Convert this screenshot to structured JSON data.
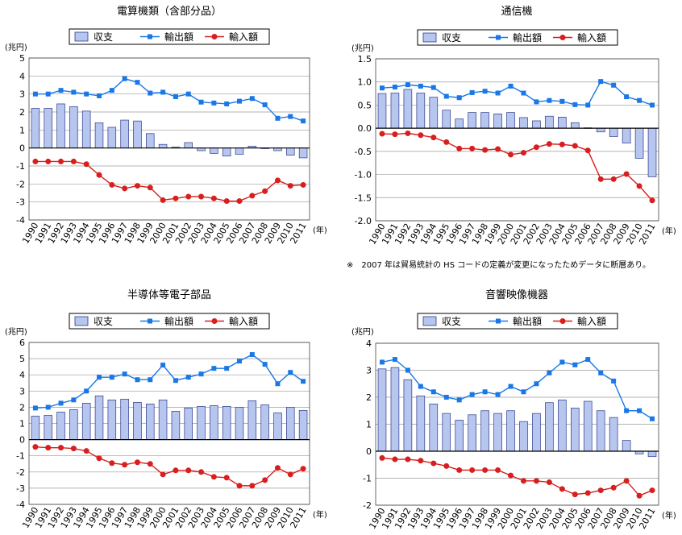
{
  "years": [
    "1990",
    "1991",
    "1992",
    "1993",
    "1994",
    "1995",
    "1996",
    "1997",
    "1998",
    "1999",
    "2000",
    "2001",
    "2002",
    "2003",
    "2004",
    "2005",
    "2006",
    "2007",
    "2008",
    "2009",
    "2010",
    "2011"
  ],
  "unit_y": "(兆円)",
  "unit_x": "(年)",
  "legend": {
    "balance": "収支",
    "exports": "輸出額",
    "imports": "輸入額"
  },
  "colors": {
    "balance_fill": "#b7c6ef",
    "balance_stroke": "#2c3a8a",
    "exports": "#1a78e6",
    "imports": "#d81e1e"
  },
  "note": "※　2007 年は貿易統計の HS コードの定義が変更になったためデータに断層あり。",
  "chart_data": [
    {
      "type": "bar",
      "title": "電算機類（含部分品）",
      "ylim": [
        -4,
        5
      ],
      "yticks": [
        "-4",
        "-3",
        "-2",
        "-1",
        "0",
        "1",
        "2",
        "3",
        "4",
        "5"
      ],
      "series": [
        {
          "name": "収支",
          "type": "bar",
          "values": [
            2.2,
            2.2,
            2.45,
            2.3,
            2.05,
            1.4,
            1.15,
            1.55,
            1.5,
            0.8,
            0.2,
            0.05,
            0.3,
            -0.15,
            -0.3,
            -0.45,
            -0.35,
            0.1,
            0.0,
            -0.15,
            -0.4,
            -0.55
          ]
        },
        {
          "name": "輸出額",
          "type": "line",
          "values": [
            3.0,
            3.0,
            3.2,
            3.1,
            3.0,
            2.9,
            3.2,
            3.85,
            3.65,
            3.05,
            3.1,
            2.85,
            3.0,
            2.55,
            2.5,
            2.45,
            2.6,
            2.75,
            2.4,
            1.65,
            1.75,
            1.5
          ]
        },
        {
          "name": "輸入額",
          "type": "line",
          "values": [
            -0.75,
            -0.75,
            -0.75,
            -0.75,
            -0.9,
            -1.5,
            -2.05,
            -2.25,
            -2.1,
            -2.2,
            -2.9,
            -2.8,
            -2.7,
            -2.7,
            -2.8,
            -2.95,
            -2.95,
            -2.65,
            -2.4,
            -1.8,
            -2.1,
            -2.05
          ]
        }
      ]
    },
    {
      "type": "bar",
      "title": "通信機",
      "ylim": [
        -2,
        1.5
      ],
      "yticks": [
        "-2.0",
        "-1.5",
        "-1.0",
        "-0.5",
        "0.0",
        "0.5",
        "1.0",
        "1.5"
      ],
      "series": [
        {
          "name": "収支",
          "type": "bar",
          "values": [
            0.75,
            0.76,
            0.84,
            0.76,
            0.67,
            0.39,
            0.2,
            0.34,
            0.34,
            0.31,
            0.34,
            0.23,
            0.16,
            0.26,
            0.24,
            0.12,
            0.01,
            -0.08,
            -0.18,
            -0.32,
            -0.65,
            -1.05
          ]
        },
        {
          "name": "輸出額",
          "type": "line",
          "values": [
            0.87,
            0.89,
            0.94,
            0.91,
            0.88,
            0.69,
            0.66,
            0.77,
            0.8,
            0.76,
            0.91,
            0.76,
            0.57,
            0.6,
            0.58,
            0.51,
            0.5,
            1.01,
            0.93,
            0.68,
            0.6,
            0.5
          ]
        },
        {
          "name": "輸入額",
          "type": "line",
          "values": [
            -0.12,
            -0.13,
            -0.11,
            -0.15,
            -0.2,
            -0.3,
            -0.44,
            -0.44,
            -0.47,
            -0.45,
            -0.57,
            -0.53,
            -0.41,
            -0.34,
            -0.35,
            -0.38,
            -0.48,
            -1.1,
            -1.1,
            -0.99,
            -1.25,
            -1.56
          ]
        }
      ]
    },
    {
      "type": "bar",
      "title": "半導体等電子部品",
      "ylim": [
        -4,
        6
      ],
      "yticks": [
        "-4",
        "-3",
        "-2",
        "-1",
        "0",
        "1",
        "2",
        "3",
        "4",
        "5",
        "6"
      ],
      "series": [
        {
          "name": "収支",
          "type": "bar",
          "values": [
            1.45,
            1.5,
            1.7,
            1.85,
            2.25,
            2.7,
            2.45,
            2.5,
            2.3,
            2.2,
            2.45,
            1.75,
            1.95,
            2.05,
            2.1,
            2.05,
            2.0,
            2.4,
            2.15,
            1.65,
            2.0,
            1.8
          ]
        },
        {
          "name": "輸出額",
          "type": "line",
          "values": [
            1.95,
            2.0,
            2.25,
            2.45,
            3.0,
            3.85,
            3.85,
            4.05,
            3.7,
            3.7,
            4.6,
            3.65,
            3.85,
            4.05,
            4.4,
            4.4,
            4.85,
            5.25,
            4.65,
            3.45,
            4.15,
            3.6
          ]
        },
        {
          "name": "輸入額",
          "type": "line",
          "values": [
            -0.45,
            -0.5,
            -0.5,
            -0.55,
            -0.7,
            -1.15,
            -1.45,
            -1.55,
            -1.4,
            -1.5,
            -2.15,
            -1.9,
            -1.9,
            -2.0,
            -2.3,
            -2.35,
            -2.85,
            -2.85,
            -2.5,
            -1.75,
            -2.15,
            -1.8
          ]
        }
      ]
    },
    {
      "type": "bar",
      "title": "音響映像機器",
      "ylim": [
        -2,
        4
      ],
      "yticks": [
        "-2",
        "-1",
        "0",
        "1",
        "2",
        "3",
        "4"
      ],
      "series": [
        {
          "name": "収支",
          "type": "bar",
          "values": [
            3.05,
            3.1,
            2.65,
            2.05,
            1.75,
            1.4,
            1.15,
            1.35,
            1.5,
            1.4,
            1.5,
            1.1,
            1.4,
            1.8,
            1.9,
            1.6,
            1.85,
            1.5,
            1.25,
            0.4,
            -0.1,
            -0.2
          ]
        },
        {
          "name": "輸出額",
          "type": "line",
          "values": [
            3.3,
            3.4,
            3.0,
            2.4,
            2.2,
            2.0,
            1.9,
            2.1,
            2.2,
            2.1,
            2.4,
            2.2,
            2.5,
            2.9,
            3.3,
            3.2,
            3.4,
            2.9,
            2.6,
            1.5,
            1.5,
            1.2
          ]
        },
        {
          "name": "輸入額",
          "type": "line",
          "values": [
            -0.25,
            -0.3,
            -0.3,
            -0.35,
            -0.45,
            -0.55,
            -0.7,
            -0.7,
            -0.7,
            -0.7,
            -0.9,
            -1.1,
            -1.1,
            -1.15,
            -1.4,
            -1.6,
            -1.55,
            -1.45,
            -1.35,
            -1.1,
            -1.65,
            -1.45
          ]
        }
      ]
    }
  ]
}
